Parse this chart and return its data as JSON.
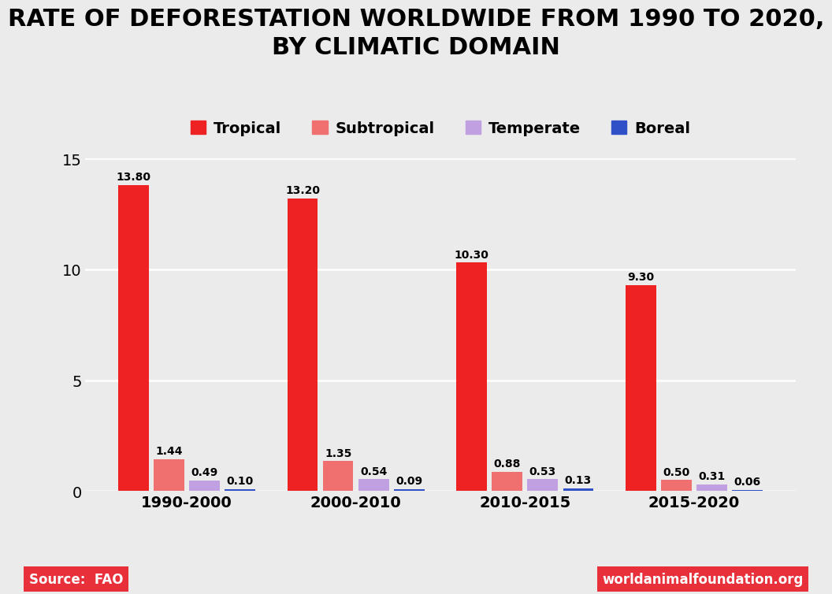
{
  "title": "RATE OF DEFORESTATION WORLDWIDE FROM 1990 TO 2020,\nBY CLIMATIC DOMAIN",
  "categories": [
    "1990-2000",
    "2000-2010",
    "2010-2015",
    "2015-2020"
  ],
  "series": {
    "Tropical": [
      13.8,
      13.2,
      10.3,
      9.3
    ],
    "Subtropical": [
      1.44,
      1.35,
      0.88,
      0.5
    ],
    "Temperate": [
      0.49,
      0.54,
      0.53,
      0.31
    ],
    "Boreal": [
      0.1,
      0.09,
      0.13,
      0.06
    ]
  },
  "colors": {
    "Tropical": "#ee2222",
    "Subtropical": "#f07070",
    "Temperate": "#c0a0e0",
    "Boreal": "#3050c8"
  },
  "ylim": [
    0,
    15
  ],
  "yticks": [
    0,
    5,
    10,
    15
  ],
  "background_color": "#ebebeb",
  "plot_background_color": "#ebebeb",
  "title_fontsize": 22,
  "legend_fontsize": 14,
  "tick_fontsize": 14,
  "source_text": "Source:  FAO",
  "source_bg": "#e8303a",
  "website_text": "worldanimalfoundation.org",
  "website_bg": "#e8303a",
  "bar_width": 0.18,
  "bar_gap": 0.03
}
